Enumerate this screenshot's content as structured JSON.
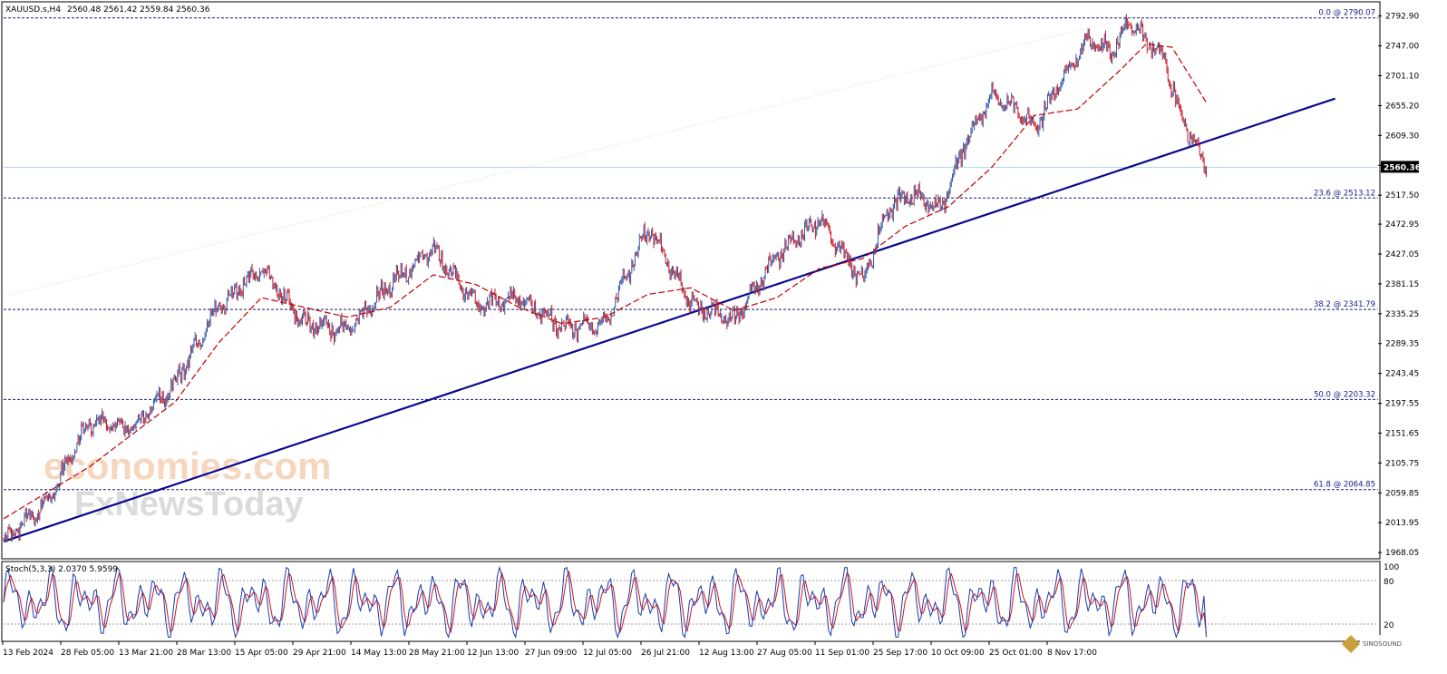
{
  "header": {
    "symbol": "XAUUSD.s,H4",
    "ohlc": "2560.48 2561.42 2559.84 2560.36"
  },
  "osc_header": "Stoch(5,3,3) 2.0370 5.9599",
  "watermark": {
    "line1": "economies.com",
    "line2": "FxNewsToday"
  },
  "corner_logo": "SINOSOUND",
  "colors": {
    "bull": "#2e5aa8",
    "bear": "#d0161e",
    "ma": "#c00000",
    "trendline": "#0a0a8c",
    "fib": "#1a1a6e",
    "price_line": "#b5dde8",
    "stoch_main": "#1a3cae",
    "stoch_signal": "#d0161e"
  },
  "chart_data": {
    "type": "line",
    "instrument": "XAUUSD.s",
    "timeframe": "H4",
    "y_ticks": [
      "2792.90",
      "2747.00",
      "2701.10",
      "2655.20",
      "2609.30",
      "2563.40",
      "2517.50",
      "2472.95",
      "2427.05",
      "2381.15",
      "2335.25",
      "2289.35",
      "2243.45",
      "2197.55",
      "2151.65",
      "2105.75",
      "2059.85",
      "2013.95",
      "1968.05"
    ],
    "ylim": [
      1964,
      2812
    ],
    "current_price": "2560.36",
    "x_labels": [
      "13 Feb 2024",
      "28 Feb 05:00",
      "13 Mar 21:00",
      "28 Mar 13:00",
      "15 Apr 05:00",
      "29 Apr 21:00",
      "14 May 13:00",
      "28 May 21:00",
      "12 Jun 13:00",
      "27 Jun 09:00",
      "12 Jul 05:00",
      "26 Jul 21:00",
      "12 Aug 13:00",
      "27 Aug 05:00",
      "11 Sep 01:00",
      "25 Sep 17:00",
      "10 Oct 09:00",
      "25 Oct 01:00",
      "8 Nov 17:00"
    ],
    "fib_levels": [
      {
        "label": "0.0 @ 2790.07",
        "value": 2790.07
      },
      {
        "label": "23.6 @ 2513.12",
        "value": 2513.12
      },
      {
        "label": "38.2 @ 2341.79",
        "value": 2341.79
      },
      {
        "label": "50.0 @ 2203.32",
        "value": 2203.32
      },
      {
        "label": "61.8 @ 2064.85",
        "value": 2064.85
      }
    ],
    "price_series": {
      "name": "",
      "x": [
        0,
        5,
        10,
        15,
        20,
        25,
        30,
        35,
        40,
        45,
        50,
        55,
        60,
        65,
        70,
        75,
        80,
        85,
        90,
        95,
        100,
        103,
        106,
        109,
        112,
        115,
        118,
        120,
        123,
        126,
        129,
        131,
        133,
        135,
        137,
        140
      ],
      "values": [
        1987,
        2045,
        2170,
        2160,
        2230,
        2345,
        2405,
        2320,
        2310,
        2380,
        2435,
        2350,
        2360,
        2315,
        2320,
        2470,
        2350,
        2325,
        2425,
        2480,
        2385,
        2500,
        2520,
        2495,
        2600,
        2670,
        2650,
        2620,
        2690,
        2755,
        2740,
        2785,
        2755,
        2730,
        2640,
        2560
      ]
    },
    "moving_average": {
      "x": [
        0,
        10,
        15,
        20,
        25,
        30,
        35,
        40,
        45,
        50,
        55,
        60,
        65,
        70,
        75,
        80,
        85,
        90,
        95,
        100,
        105,
        110,
        115,
        120,
        125,
        130,
        133,
        136,
        140
      ],
      "values": [
        2020,
        2100,
        2150,
        2200,
        2290,
        2360,
        2345,
        2330,
        2345,
        2395,
        2380,
        2345,
        2320,
        2330,
        2365,
        2375,
        2340,
        2360,
        2405,
        2420,
        2470,
        2500,
        2560,
        2640,
        2650,
        2710,
        2750,
        2745,
        2660
      ]
    },
    "trendline": {
      "x": [
        0,
        155
      ],
      "values": [
        1985,
        2666
      ]
    },
    "stochastic": {
      "levels": [
        100,
        80,
        20
      ],
      "ylim": [
        0,
        100
      ],
      "main_last": 2.037,
      "signal_last": 5.9599
    }
  }
}
